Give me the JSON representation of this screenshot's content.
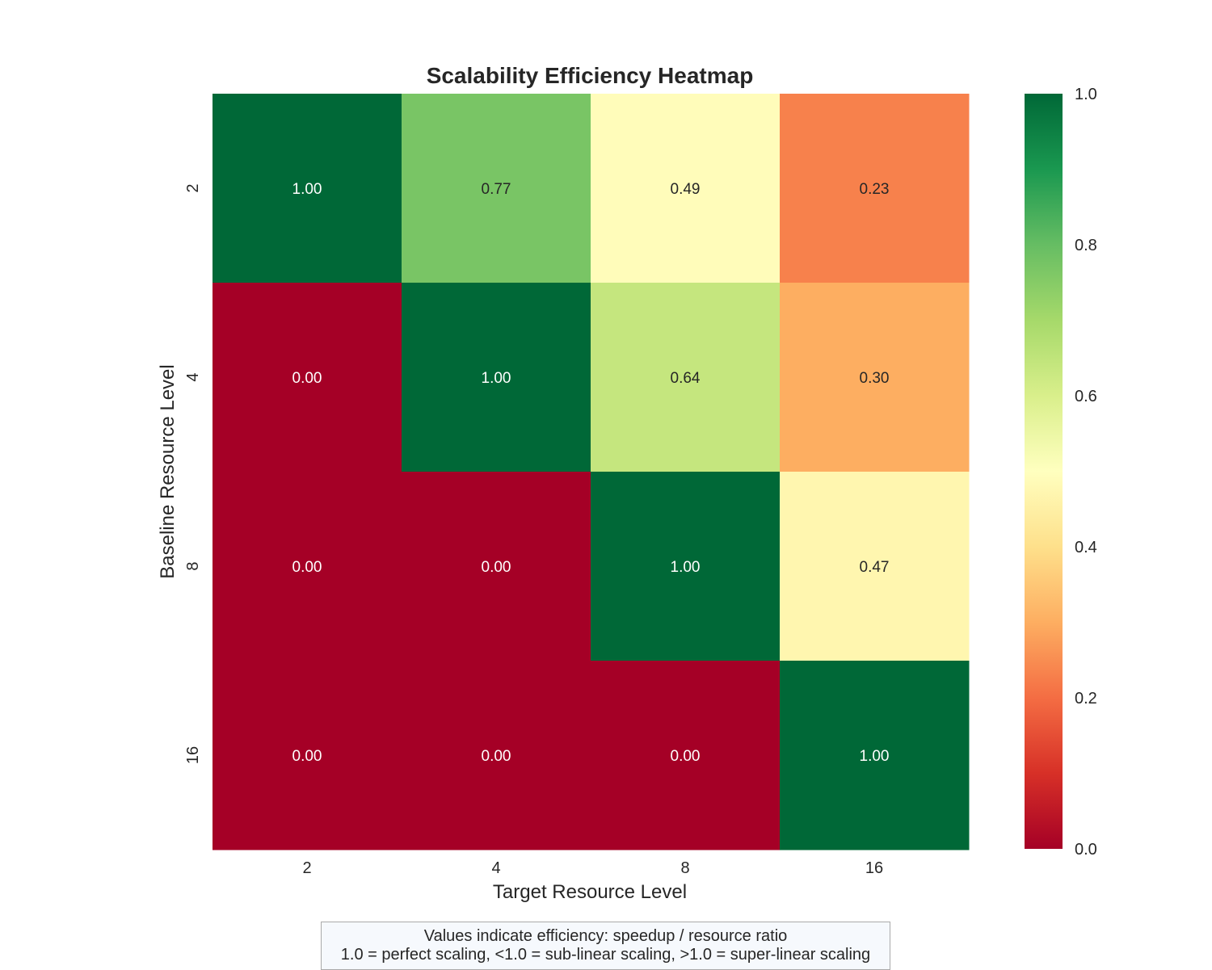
{
  "chart_data": {
    "type": "heatmap",
    "title": "Scalability Efficiency Heatmap",
    "xlabel": "Target Resource Level",
    "ylabel": "Baseline Resource Level",
    "x_categories": [
      "2",
      "4",
      "8",
      "16"
    ],
    "y_categories": [
      "2",
      "4",
      "8",
      "16"
    ],
    "values": [
      [
        1.0,
        0.77,
        0.49,
        0.23
      ],
      [
        0.0,
        1.0,
        0.64,
        0.3
      ],
      [
        0.0,
        0.0,
        1.0,
        0.47
      ],
      [
        0.0,
        0.0,
        0.0,
        1.0
      ]
    ],
    "value_labels": [
      [
        "1.00",
        "0.77",
        "0.49",
        "0.23"
      ],
      [
        "0.00",
        "1.00",
        "0.64",
        "0.30"
      ],
      [
        "0.00",
        "0.00",
        "1.00",
        "0.47"
      ],
      [
        "0.00",
        "0.00",
        "0.00",
        "1.00"
      ]
    ],
    "colormap": "RdYlGn",
    "color_range": [
      0.0,
      1.0
    ],
    "colorbar_ticks": [
      "0.0",
      "0.2",
      "0.4",
      "0.6",
      "0.8",
      "1.0"
    ],
    "grid": false,
    "legend": "colorbar-right"
  },
  "note": {
    "line1": "Values indicate efficiency: speedup / resource ratio",
    "line2": "1.0 = perfect scaling, <1.0 = sub-linear scaling, >1.0 = super-linear scaling"
  }
}
